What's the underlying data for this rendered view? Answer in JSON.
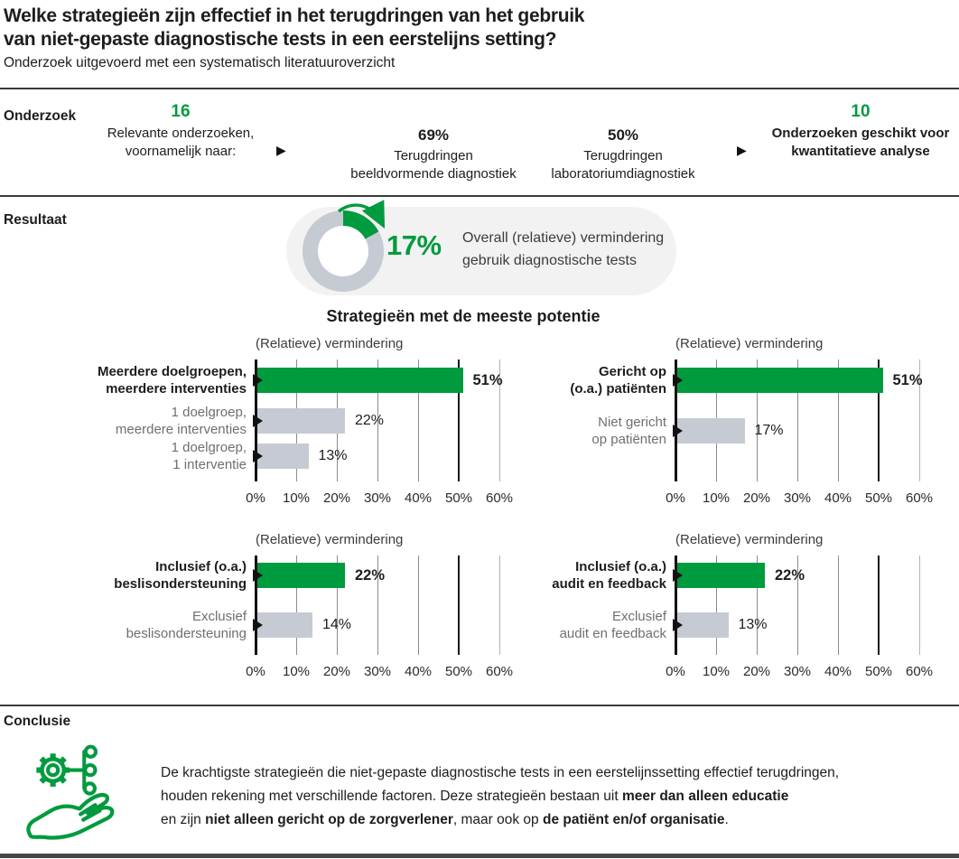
{
  "header": {
    "title_line1": "Welke strategieën zijn effectief in het terugdringen van het gebruik",
    "title_line2": "van niet-gepaste diagnostische tests in een eerstelijns setting?",
    "subtitle": "Onderzoek uitgevoerd met een systematisch literatuuroverzicht"
  },
  "colors": {
    "green": "#009b3e",
    "bar_gray": "#c6cad3",
    "text_dark": "#1d1d1b",
    "text_gray": "#706f6f",
    "pill_background": "#f2f2f3",
    "rule_dark": "#3a3a39"
  },
  "onderzoek": {
    "label": "Onderzoek",
    "arrow_icon": "▶",
    "steps": [
      {
        "value": "16",
        "value_style": "green",
        "lines": [
          "Relevante onderzoeken,",
          "voornamelijk naar:"
        ]
      },
      {
        "value": "69%",
        "value_style": "dark",
        "lines": [
          "Terugdringen",
          "beeldvormende diagnostiek"
        ]
      },
      {
        "value": "50%",
        "value_style": "dark",
        "lines": [
          "Terugdringen",
          "laboratoriumdiagnostiek"
        ]
      },
      {
        "value": "10",
        "value_style": "green",
        "lines": [
          "Onderzoeken geschikt voor",
          "kwantitatieve analyse"
        ]
      }
    ]
  },
  "resultaat": {
    "label": "Resultaat",
    "donut_percent": 17,
    "value": "17%",
    "desc_line1": "Overall (relatieve) vermindering",
    "desc_line2": "gebruik diagnostische tests"
  },
  "charts_heading": "Strategieën met de meeste potentie",
  "chart_data": [
    {
      "type": "bar",
      "orientation": "horizontal",
      "title": "(Relatieve) vermindering",
      "categories": [
        "Meerdere doelgroepen,\nmeerdere interventies",
        "1 doelgroep,\nmeerdere interventies",
        "1 doelgroep,\n1 interventie"
      ],
      "values": [
        51,
        22,
        13
      ],
      "labels": [
        "51%",
        "22%",
        "13%"
      ],
      "highlight": [
        true,
        false,
        false
      ],
      "xticks": [
        "0%",
        "10%",
        "20%",
        "30%",
        "40%",
        "50%",
        "60%"
      ],
      "xlim": [
        0,
        60
      ],
      "grid": true,
      "emphasized_gridline": 50
    },
    {
      "type": "bar",
      "orientation": "horizontal",
      "title": "(Relatieve) vermindering",
      "categories": [
        "Gericht op\n(o.a.) patiënten",
        "Niet gericht\nop patiënten"
      ],
      "values": [
        51,
        17
      ],
      "labels": [
        "51%",
        "17%"
      ],
      "highlight": [
        true,
        false
      ],
      "xticks": [
        "0%",
        "10%",
        "20%",
        "30%",
        "40%",
        "50%",
        "60%"
      ],
      "xlim": [
        0,
        60
      ],
      "grid": true,
      "emphasized_gridline": 50
    },
    {
      "type": "bar",
      "orientation": "horizontal",
      "title": "(Relatieve) vermindering",
      "categories": [
        "Inclusief (o.a.)\nbeslisondersteuning",
        "Exclusief\nbeslisondersteuning"
      ],
      "values": [
        22,
        14
      ],
      "labels": [
        "22%",
        "14%"
      ],
      "highlight": [
        true,
        false
      ],
      "xticks": [
        "0%",
        "10%",
        "20%",
        "30%",
        "40%",
        "50%",
        "60%"
      ],
      "xlim": [
        0,
        60
      ],
      "grid": true,
      "emphasized_gridline": 50
    },
    {
      "type": "bar",
      "orientation": "horizontal",
      "title": "(Relatieve) vermindering",
      "categories": [
        "Inclusief (o.a.)\naudit en feedback",
        "Exclusief\naudit en feedback"
      ],
      "values": [
        22,
        13
      ],
      "labels": [
        "22%",
        "13%"
      ],
      "highlight": [
        true,
        false
      ],
      "xticks": [
        "0%",
        "10%",
        "20%",
        "30%",
        "40%",
        "50%",
        "60%"
      ],
      "xlim": [
        0,
        60
      ],
      "grid": true,
      "emphasized_gridline": 50
    }
  ],
  "conclusie": {
    "label": "Conclusie",
    "icon": "hand-holding-gear-network-icon",
    "segments": [
      {
        "text": "De krachtigste strategieën die niet-gepaste diagnostische tests in een eerstelijnssetting effectief terugdringen,\nhouden rekening met verschillende factoren. Deze strategieën bestaan uit ",
        "bold": false
      },
      {
        "text": "meer dan alleen educatie",
        "bold": true
      },
      {
        "text": "\nen zijn ",
        "bold": false
      },
      {
        "text": "niet alleen gericht op de zorgverlener",
        "bold": true
      },
      {
        "text": ", maar ook op ",
        "bold": false
      },
      {
        "text": "de patiënt en/of organisatie",
        "bold": true
      },
      {
        "text": ".",
        "bold": false
      }
    ]
  }
}
